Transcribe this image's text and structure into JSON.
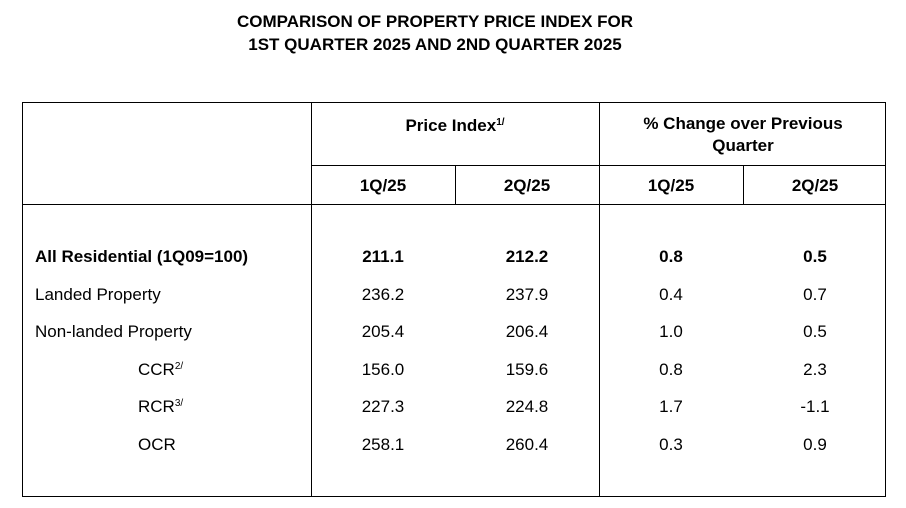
{
  "title": {
    "line1": "COMPARISON OF PROPERTY PRICE INDEX FOR",
    "line2": "1ST QUARTER 2025 AND 2ND QUARTER 2025"
  },
  "headers": {
    "price_index": "Price Index",
    "price_index_sup": "1/",
    "pct_change_line1": "% Change over Previous",
    "pct_change_line2": "Quarter",
    "sub": [
      "1Q/25",
      "2Q/25",
      "1Q/25",
      "2Q/25"
    ]
  },
  "rows": [
    {
      "label": "All Residential (1Q09=100)",
      "sup": "",
      "values": [
        "211.1",
        "212.2",
        "0.8",
        "0.5"
      ]
    },
    {
      "label": "Landed Property",
      "sup": "",
      "values": [
        "236.2",
        "237.9",
        "0.4",
        "0.7"
      ]
    },
    {
      "label": "Non-landed Property",
      "sup": "",
      "values": [
        "205.4",
        "206.4",
        "1.0",
        "0.5"
      ]
    },
    {
      "label": "CCR",
      "sup": "2/",
      "values": [
        "156.0",
        "159.6",
        "0.8",
        "2.3"
      ]
    },
    {
      "label": "RCR",
      "sup": "3/",
      "values": [
        "227.3",
        "224.8",
        "1.7",
        "-1.1"
      ]
    },
    {
      "label": "OCR",
      "sup": "",
      "values": [
        "258.1",
        "260.4",
        "0.3",
        "0.9"
      ]
    }
  ]
}
